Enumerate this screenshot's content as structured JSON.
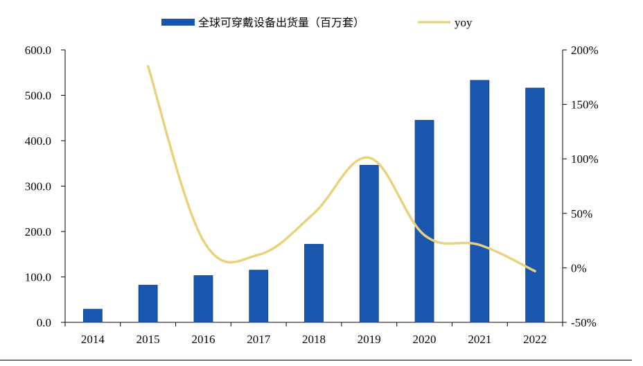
{
  "chart_data": {
    "type": "bar+line",
    "categories": [
      "2014",
      "2015",
      "2016",
      "2017",
      "2018",
      "2019",
      "2020",
      "2021",
      "2022"
    ],
    "series": [
      {
        "name": "全球可穿戴设备出货量（百万套）",
        "type": "bar",
        "axis": "left",
        "color": "#1a56ad",
        "values": [
          29.0,
          82.0,
          103.0,
          115.0,
          172.0,
          346.0,
          445.0,
          533.0,
          516.0
        ]
      },
      {
        "name": "yoy",
        "type": "line",
        "axis": "right",
        "color": "#e8d27c",
        "values": [
          null,
          185,
          25,
          12,
          50,
          101,
          30,
          21,
          -3
        ]
      }
    ],
    "y_left": {
      "min": 0,
      "max": 600,
      "step": 100,
      "tick_labels": [
        "0.0",
        "100.0",
        "200.0",
        "300.0",
        "400.0",
        "500.0",
        "600.0"
      ]
    },
    "y_right": {
      "min": -50,
      "max": 200,
      "step": 50,
      "tick_labels": [
        "-50%",
        "0%",
        "50%",
        "100%",
        "150%",
        "200%"
      ]
    },
    "legend_position": "top-center",
    "grid": false
  }
}
